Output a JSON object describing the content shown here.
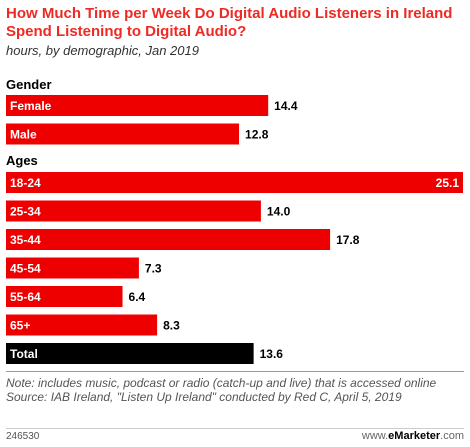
{
  "header": {
    "title": "How Much Time per Week Do Digital Audio Listeners in Ireland Spend Listening to Digital Audio?",
    "subtitle": "hours, by demographic, Jan 2019"
  },
  "footer": {
    "note": "Note: includes music, podcast or radio (catch-up and live) that is accessed online",
    "source": "Source: IAB Ireland, \"Listen Up Ireland\" conducted by Red C, April 5, 2019",
    "chart_id": "246530",
    "brand_prefix": "www.",
    "brand_name": "eMarketer",
    "brand_suffix": ".com"
  },
  "colors": {
    "bar": "#ee0000",
    "total_bar": "#000000",
    "accent": "#ee2a24"
  },
  "chart_data": {
    "type": "bar",
    "orientation": "horizontal",
    "title": "How Much Time per Week Do Digital Audio Listeners in Ireland Spend Listening to Digital Audio?",
    "subtitle": "hours, by demographic, Jan 2019",
    "xlim": [
      0,
      25.1
    ],
    "groups": [
      {
        "label": "Gender",
        "categories": [
          "Female",
          "Male"
        ],
        "values": [
          14.4,
          12.8
        ]
      },
      {
        "label": "Ages",
        "categories": [
          "18-24",
          "25-34",
          "35-44",
          "45-54",
          "55-64",
          "65+",
          "Total"
        ],
        "values": [
          25.1,
          14.0,
          17.8,
          7.3,
          6.4,
          8.3,
          13.6
        ]
      }
    ],
    "value_labels": [
      "14.4",
      "12.8",
      "25.1",
      "14.0",
      "17.8",
      "7.3",
      "6.4",
      "8.3",
      "13.6"
    ],
    "highlight_category": "Total"
  }
}
